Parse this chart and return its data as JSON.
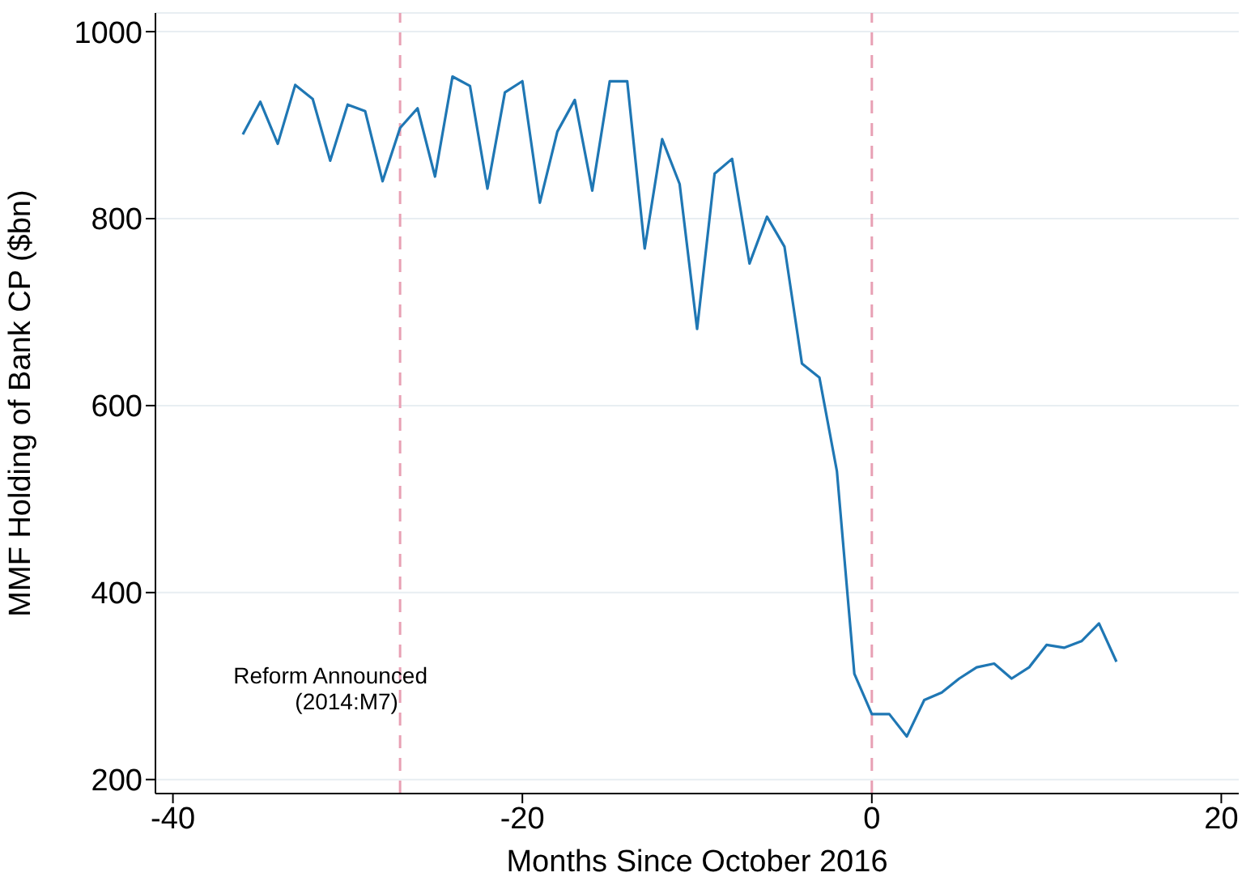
{
  "chart_data": {
    "type": "line",
    "xlabel": "Months Since October 2016",
    "ylabel": "MMF Holding of Bank CP ($bn)",
    "x": [
      -36,
      -35,
      -34,
      -33,
      -32,
      -31,
      -30,
      -29,
      -28,
      -27,
      -26,
      -25,
      -24,
      -23,
      -22,
      -21,
      -20,
      -19,
      -18,
      -17,
      -16,
      -15,
      -14,
      -13,
      -12,
      -11,
      -10,
      -9,
      -8,
      -7,
      -6,
      -5,
      -4,
      -3,
      -2,
      -1,
      0,
      1,
      2,
      3,
      4,
      5,
      6,
      7,
      8,
      9,
      10,
      11,
      12,
      13,
      14
    ],
    "series": [
      {
        "color": "#1f77b4",
        "values": [
          890,
          925,
          880,
          943,
          928,
          862,
          922,
          915,
          840,
          897,
          918,
          845,
          952,
          942,
          832,
          935,
          947,
          817,
          893,
          927,
          830,
          947,
          947,
          768,
          885,
          837,
          682,
          848,
          864,
          752,
          802,
          770,
          645,
          630,
          530,
          313,
          270,
          270,
          246,
          285,
          293,
          308,
          320,
          324,
          308,
          320,
          344,
          341,
          348,
          367,
          326
        ]
      }
    ],
    "xlim": [
      -41,
      21
    ],
    "xticks": [
      -40,
      -20,
      0,
      20
    ],
    "ylim": [
      185,
      1020
    ],
    "yticks": [
      200,
      400,
      600,
      800,
      1000
    ],
    "grid": "y",
    "legend": false,
    "ref_lines": [
      {
        "axis": "x",
        "value": -27,
        "color": "#e8a0b4",
        "line_style": "dashed",
        "label": "Reform Announced\n(2014:M7)"
      },
      {
        "axis": "x",
        "value": 0,
        "color": "#e8a0b4",
        "line_style": "dashed"
      }
    ]
  }
}
